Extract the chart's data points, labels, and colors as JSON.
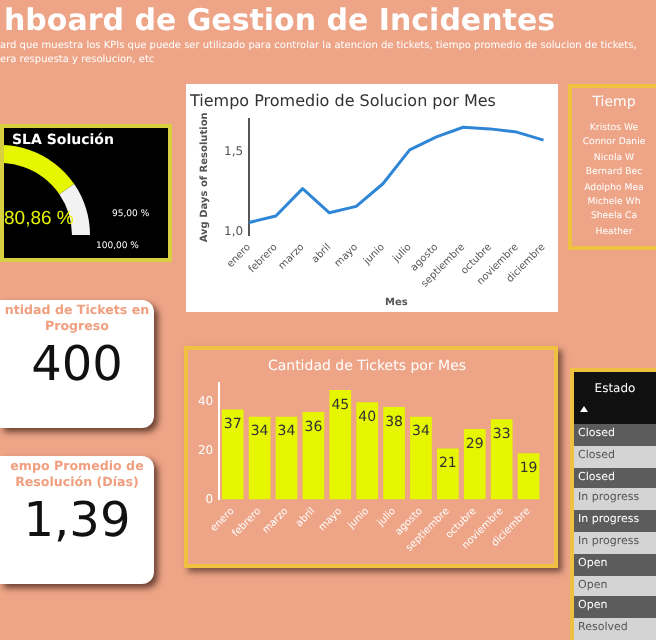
{
  "chart_data": [
    {
      "type": "other",
      "title": "hboard de Gestion de Incidentes",
      "subtitle": "ard que muestra los KPIs que puede ser utilizado para controlar la atencion de tickets, tiempo promedio de solucion de tickets,\nera respuesta y resolucion, etc"
    },
    {
      "type": "donut",
      "title": "SLA Solución",
      "categories": [
        null,
        null
      ],
      "values": [
        80.86,
        19.14
      ],
      "colors": [
        "#e6f500",
        "#f2f2f2"
      ],
      "annotations": [
        "80,86 %",
        "95,00 %",
        "100,00 %"
      ]
    },
    {
      "type": "line",
      "title": "Tiempo Promedio de Solucion por Mes",
      "xlabel": "Mes",
      "ylabel": "Avg Days of Resolution",
      "categories": [
        "enero",
        "febrero",
        "marzo",
        "abril",
        "mayo",
        "junio",
        "julio",
        "agosto",
        "septiembre",
        "octubre",
        "noviembre",
        "diciembre"
      ],
      "series": [
        {
          "color": "#2f86d6",
          "values": [
            1.06,
            1.1,
            1.27,
            1.12,
            1.16,
            1.3,
            1.51,
            1.59,
            1.65,
            1.64,
            1.62,
            1.57
          ]
        }
      ],
      "ylim": [
        0.98,
        1.7
      ],
      "yticks": [
        {
          "value": 1.0,
          "label": "1,0"
        },
        {
          "value": 1.5,
          "label": "1,5"
        }
      ],
      "grid": false,
      "legend": false,
      "marker": "none"
    },
    {
      "type": "other",
      "title": "Tiemp",
      "annotations": [
        "Kristos We",
        "Connor Danie",
        "Nicola W",
        "Bernard Bec",
        "Adolpho Mea",
        "Michele Wh",
        "Sheela Ca",
        "Heather"
      ]
    },
    {
      "type": "other",
      "title": "ntidad de Tickets en Progreso",
      "annotations": [
        "400"
      ]
    },
    {
      "type": "bar",
      "title": "Cantidad de Tickets por Mes",
      "categories": [
        "enero",
        "febrero",
        "marzo",
        "abril",
        "mayo",
        "junio",
        "julio",
        "agosto",
        "septiembre",
        "octubre",
        "noviembre",
        "diciembre"
      ],
      "series": [
        {
          "color": "#e6f500",
          "values": [
            37,
            34,
            34,
            36,
            45,
            40,
            38,
            34,
            21,
            29,
            33,
            19
          ]
        }
      ],
      "ylim": [
        0,
        48
      ],
      "yticks": [
        0,
        20,
        40
      ],
      "grid": false,
      "legend": false,
      "data_labels": true
    },
    {
      "type": "other",
      "title": "Estado",
      "annotations": [
        "Closed",
        "Closed",
        "Closed",
        "In progress",
        "In progress",
        "In progress",
        "Open",
        "Open",
        "Open",
        "Resolved"
      ]
    },
    {
      "type": "other",
      "title": "empo Promedio de Resolución (Días)",
      "annotations": [
        "1,39"
      ]
    }
  ]
}
